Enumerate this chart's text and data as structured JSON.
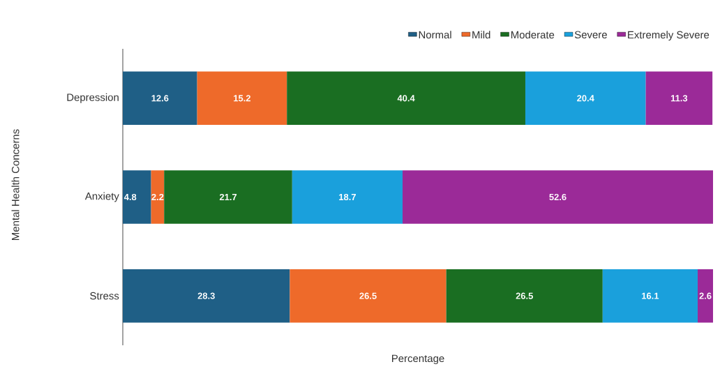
{
  "chart_data": {
    "type": "bar",
    "orientation": "horizontal",
    "stacked": true,
    "xlabel": "Percentage",
    "ylabel": "Mental Health Concerns",
    "categories": [
      "Depression",
      "Anxiety",
      "Stress"
    ],
    "series": [
      {
        "name": "Normal",
        "color": "#1f5f86",
        "values": [
          12.6,
          4.8,
          28.3
        ]
      },
      {
        "name": "Mild",
        "color": "#ee6a2a",
        "values": [
          15.2,
          2.2,
          26.5
        ]
      },
      {
        "name": "Moderate",
        "color": "#1a6e22",
        "values": [
          40.4,
          21.7,
          26.5
        ]
      },
      {
        "name": "Severe",
        "color": "#1aa0dc",
        "values": [
          20.4,
          18.7,
          16.1
        ]
      },
      {
        "name": "Extremely Severe",
        "color": "#9b2a98",
        "values": [
          11.3,
          52.6,
          2.6
        ]
      }
    ],
    "data_labels": true,
    "legend": "top right",
    "tick_labels": "y",
    "grid": false
  }
}
